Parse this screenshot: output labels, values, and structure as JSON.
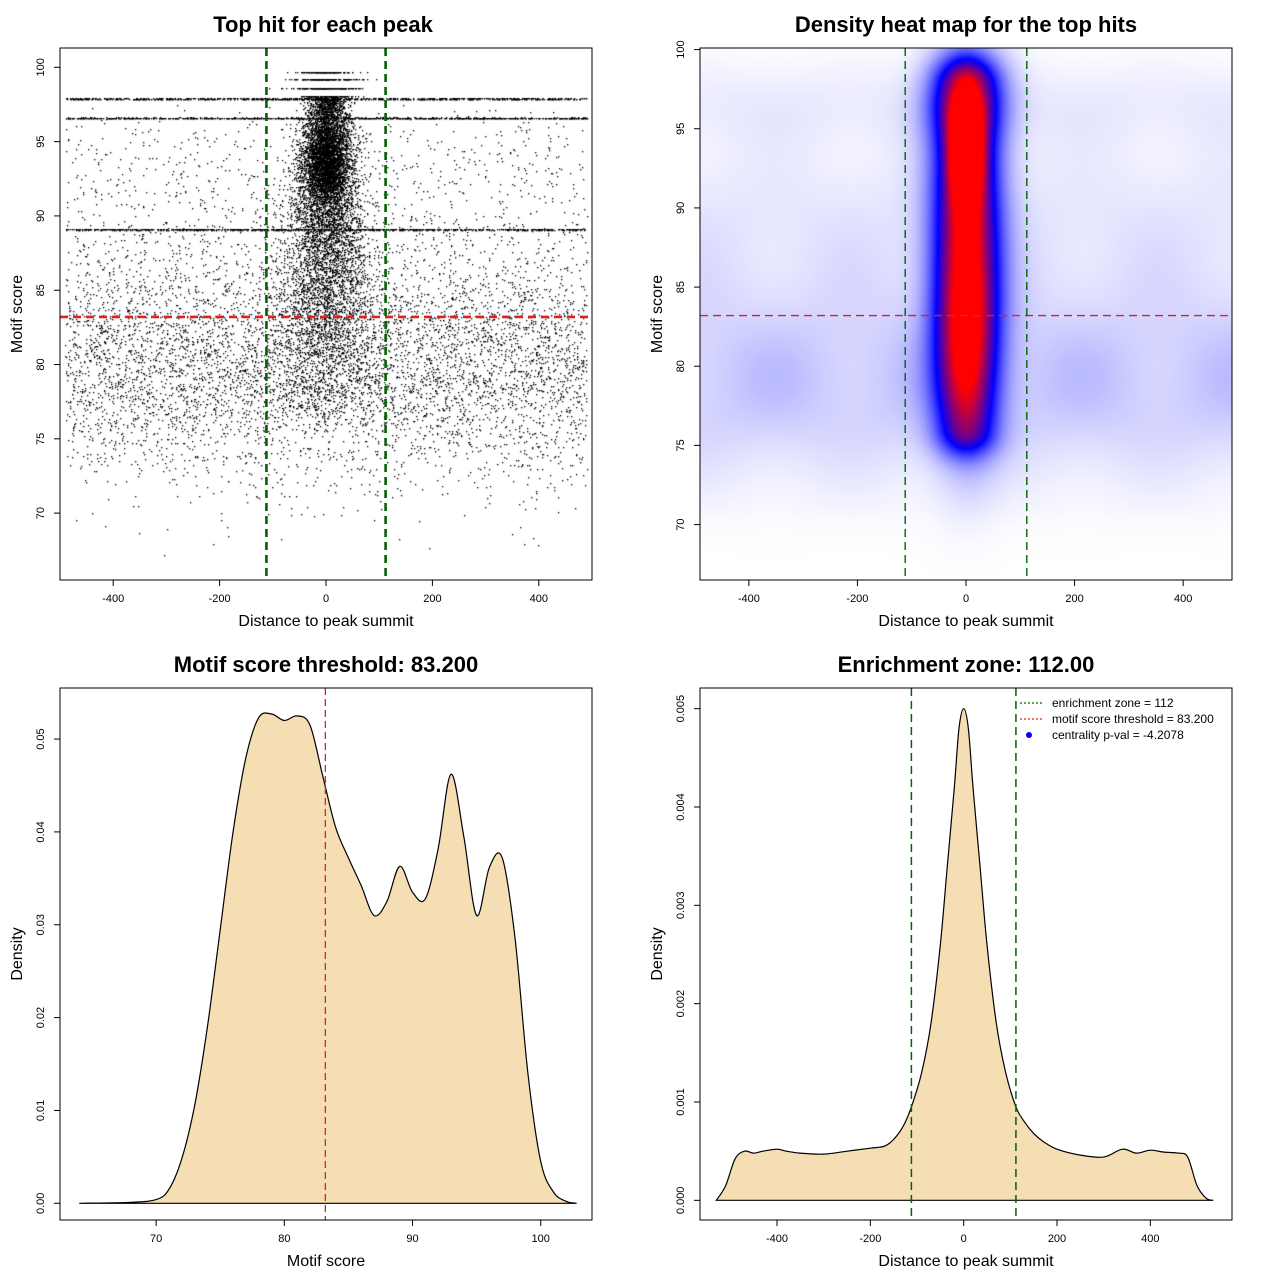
{
  "chart_data": [
    {
      "type": "scatter",
      "title": "Top hit for each peak",
      "xlabel": "Distance to peak summit",
      "ylabel": "Motif score",
      "xlim": [
        -500,
        500
      ],
      "ylim": [
        65.5,
        101.3
      ],
      "x_ticks": [
        -400,
        -200,
        0,
        200,
        400
      ],
      "y_ticks": [
        70,
        75,
        80,
        85,
        90,
        95,
        100
      ],
      "threshold_line": {
        "y": 83.2,
        "color": "#dd2222"
      },
      "zone_lines": {
        "x": [
          -112,
          112
        ],
        "color": "#006400"
      },
      "point_color": "#000000",
      "bands": [
        {
          "y_center": 79.5,
          "y_spread": 4.5,
          "x_width": 490,
          "count": 2600
        },
        {
          "y_center": 85.0,
          "y_spread": 9.0,
          "x_width": 490,
          "count": 900
        },
        {
          "y_center": 90.0,
          "y_spread": 9.5,
          "x_width": 60,
          "count": 2200
        },
        {
          "y_center": 94.0,
          "y_spread": 3.0,
          "x_width": 45,
          "count": 1400
        }
      ],
      "discrete_rows": [
        96.6,
        97.9,
        89.1
      ]
    },
    {
      "type": "heatmap",
      "title": "Density heat map for the top hits",
      "xlabel": "Distance to peak summit",
      "ylabel": "Motif score",
      "xlim": [
        -490,
        490
      ],
      "ylim": [
        66.5,
        100.1
      ],
      "x_ticks": [
        -400,
        -200,
        0,
        200,
        400
      ],
      "y_ticks": [
        70,
        75,
        80,
        85,
        90,
        95,
        100
      ],
      "threshold_line": {
        "y": 83.2,
        "color": "#dd2222"
      },
      "zone_lines": {
        "x": [
          -112,
          112
        ],
        "color": "#006400"
      },
      "colormap": [
        "#ffffff",
        "#0000ff",
        "#ff0000"
      ],
      "hotspots": [
        {
          "x": 0,
          "y": 93.5,
          "sx": 20,
          "sy": 2.2,
          "level": 1.0
        },
        {
          "x": 0,
          "y": 90.0,
          "sx": 45,
          "sy": 6.5,
          "level": 0.55
        },
        {
          "x": 0,
          "y": 81.5,
          "sx": 40,
          "sy": 4.5,
          "level": 0.5
        },
        {
          "x": 0,
          "y": 96.8,
          "sx": 50,
          "sy": 1.8,
          "level": 0.35
        }
      ]
    },
    {
      "type": "area",
      "title": "Motif score threshold: 83.200",
      "xlabel": "Motif score",
      "ylabel": "Density",
      "xlim": [
        62.5,
        104
      ],
      "ylim": [
        -0.0018,
        0.0555
      ],
      "x_ticks": [
        70,
        80,
        90,
        100
      ],
      "y_ticks": [
        0,
        0.01,
        0.02,
        0.03,
        0.04,
        0.05
      ],
      "y_tick_labels": [
        "0.00",
        "0.01",
        "0.02",
        "0.03",
        "0.04",
        "0.05"
      ],
      "fill_color": "#f5deb3",
      "threshold_line": {
        "x": 83.2,
        "color": "#dd2222"
      },
      "x": [
        64,
        68,
        70,
        71,
        72,
        73,
        74,
        75,
        76,
        77,
        78,
        79,
        80,
        81,
        82,
        83,
        84,
        85,
        86,
        87,
        88,
        89,
        90,
        91,
        92,
        93,
        94,
        95,
        96,
        97,
        98,
        99,
        100,
        101,
        102,
        102.8
      ],
      "y": [
        0,
        0.0001,
        0.0004,
        0.0015,
        0.0048,
        0.0105,
        0.019,
        0.0295,
        0.04,
        0.048,
        0.0523,
        0.0527,
        0.052,
        0.0525,
        0.0515,
        0.046,
        0.0405,
        0.0372,
        0.0342,
        0.031,
        0.0325,
        0.0363,
        0.0335,
        0.0328,
        0.0382,
        0.0462,
        0.0395,
        0.031,
        0.0362,
        0.0372,
        0.0285,
        0.014,
        0.0045,
        0.0012,
        0.0002,
        0
      ]
    },
    {
      "type": "area",
      "title": "Enrichment zone: 112.00",
      "xlabel": "Distance to peak summit",
      "ylabel": "Density",
      "xlim": [
        -565,
        575
      ],
      "ylim": [
        -0.0002,
        0.00521
      ],
      "x_ticks": [
        -400,
        -200,
        0,
        200,
        400
      ],
      "y_ticks": [
        0,
        0.001,
        0.002,
        0.003,
        0.004,
        0.005
      ],
      "y_tick_labels": [
        "0.000",
        "0.001",
        "0.002",
        "0.003",
        "0.004",
        "0.005"
      ],
      "fill_color": "#f5deb3",
      "zone_lines": {
        "x": [
          -112,
          112
        ],
        "color": "#006400"
      },
      "x": [
        -530,
        -510,
        -490,
        -470,
        -450,
        -430,
        -400,
        -380,
        -350,
        -300,
        -250,
        -200,
        -170,
        -150,
        -130,
        -112,
        -90,
        -70,
        -50,
        -35,
        -20,
        -10,
        0,
        10,
        20,
        35,
        50,
        70,
        90,
        112,
        130,
        150,
        170,
        200,
        250,
        300,
        340,
        370,
        400,
        430,
        460,
        480,
        500,
        520,
        535
      ],
      "y": [
        0,
        0.00015,
        0.00042,
        0.0005,
        0.00048,
        0.0005,
        0.00052,
        0.0005,
        0.00048,
        0.00047,
        0.0005,
        0.00053,
        0.00055,
        0.00062,
        0.00075,
        0.00095,
        0.0013,
        0.0018,
        0.0026,
        0.0034,
        0.0042,
        0.0048,
        0.005,
        0.0048,
        0.0042,
        0.0034,
        0.0026,
        0.0018,
        0.0013,
        0.00095,
        0.0008,
        0.00068,
        0.0006,
        0.00052,
        0.00046,
        0.00044,
        0.00052,
        0.00048,
        0.00051,
        0.00049,
        0.00048,
        0.00044,
        0.00015,
        2e-05,
        0
      ],
      "legend": [
        {
          "label": "enrichment zone = 112",
          "color": "#006400",
          "style": "dotted-line"
        },
        {
          "label": "motif score threshold = 83.200",
          "color": "#dd2222",
          "style": "dotted-line"
        },
        {
          "label": "centrality p-val = -4.2078",
          "color": "#0000ff",
          "style": "point"
        }
      ],
      "legend_position": "top-right"
    }
  ]
}
